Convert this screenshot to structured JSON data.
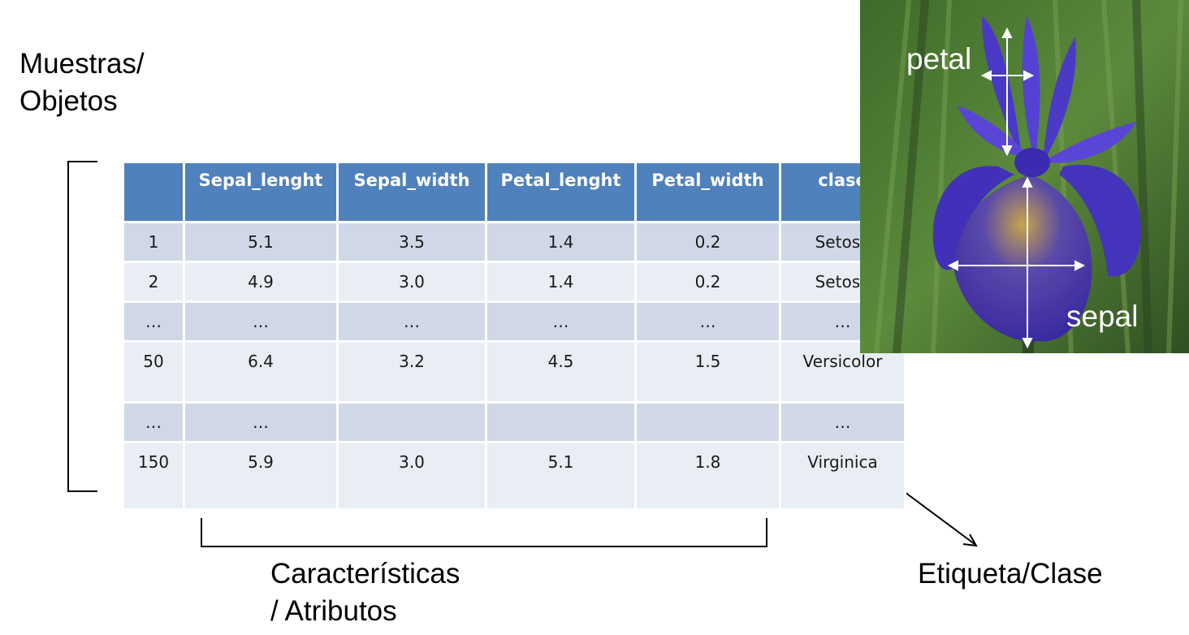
{
  "left_label": [
    "Muestras/",
    "Objetos"
  ],
  "bottom_label": [
    "Características",
    "/ Atributos"
  ],
  "right_label": "Etiqueta/Clase",
  "table": {
    "headers": [
      "",
      "Sepal_lenght",
      "Sepal_width",
      "Petal_lenght",
      "Petal_width",
      "clase"
    ],
    "rows": [
      [
        "1",
        "5.1",
        "3.5",
        "1.4",
        "0.2",
        "Setosa"
      ],
      [
        "2",
        "4.9",
        "3.0",
        "1.4",
        "0.2",
        "Setosa"
      ],
      [
        "…",
        "…",
        "…",
        "…",
        "…",
        "…"
      ],
      [
        "50",
        "6.4",
        "3.2",
        "4.5",
        "1.5",
        "Versicolor"
      ],
      [
        "…",
        "…",
        "",
        "",
        "",
        "…"
      ],
      [
        "150",
        "5.9",
        "3.0",
        "5.1",
        "1.8",
        "Virginica"
      ]
    ]
  },
  "photo": {
    "petal_label": "petal",
    "sepal_label": "sepal"
  },
  "colors": {
    "header_bg": "#4f81bd",
    "row_odd": "#d0d8e8",
    "row_even": "#e9edf4"
  }
}
